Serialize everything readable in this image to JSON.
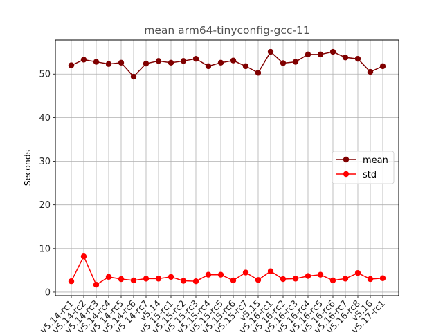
{
  "chart_data": {
    "type": "line",
    "title": "mean arm64-tinyconfig-gcc-11",
    "xlabel": "",
    "ylabel": "Seconds",
    "categories": [
      "v5.14-rc1",
      "v5.14-rc2",
      "v5.14-rc3",
      "v5.14-rc4",
      "v5.14-rc5",
      "v5.14-rc6",
      "v5.14-rc7",
      "v5.14",
      "v5.15-rc1",
      "v5.15-rc2",
      "v5.15-rc3",
      "v5.15-rc4",
      "v5.15-rc5",
      "v5.15-rc6",
      "v5.15-rc7",
      "v5.15",
      "v5.16-rc1",
      "v5.16-rc2",
      "v5.16-rc3",
      "v5.16-rc4",
      "v5.16-rc5",
      "v5.16-rc6",
      "v5.16-rc7",
      "v5.16-rc8",
      "v5.16",
      "v5.17-rc1"
    ],
    "series": [
      {
        "name": "mean",
        "color": "#800000",
        "values": [
          52.0,
          53.3,
          52.8,
          52.3,
          52.6,
          49.4,
          52.4,
          53.0,
          52.6,
          53.0,
          53.5,
          51.8,
          52.6,
          53.1,
          51.8,
          50.3,
          55.1,
          52.5,
          52.8,
          54.5,
          54.5,
          55.1,
          53.8,
          53.5,
          50.5,
          51.8
        ]
      },
      {
        "name": "std",
        "color": "#ff0000",
        "values": [
          2.5,
          8.2,
          1.7,
          3.5,
          3.0,
          2.7,
          3.1,
          3.1,
          3.5,
          2.6,
          2.5,
          4.0,
          4.0,
          2.7,
          4.5,
          2.8,
          4.8,
          3.0,
          3.1,
          3.7,
          4.0,
          2.7,
          3.1,
          4.4,
          3.0,
          3.2
        ]
      }
    ],
    "ylim": [
      -0.8,
      57.8
    ],
    "yticks": [
      "0",
      "10",
      "20",
      "30",
      "40",
      "50"
    ],
    "grid": true,
    "legend": "center-right"
  }
}
